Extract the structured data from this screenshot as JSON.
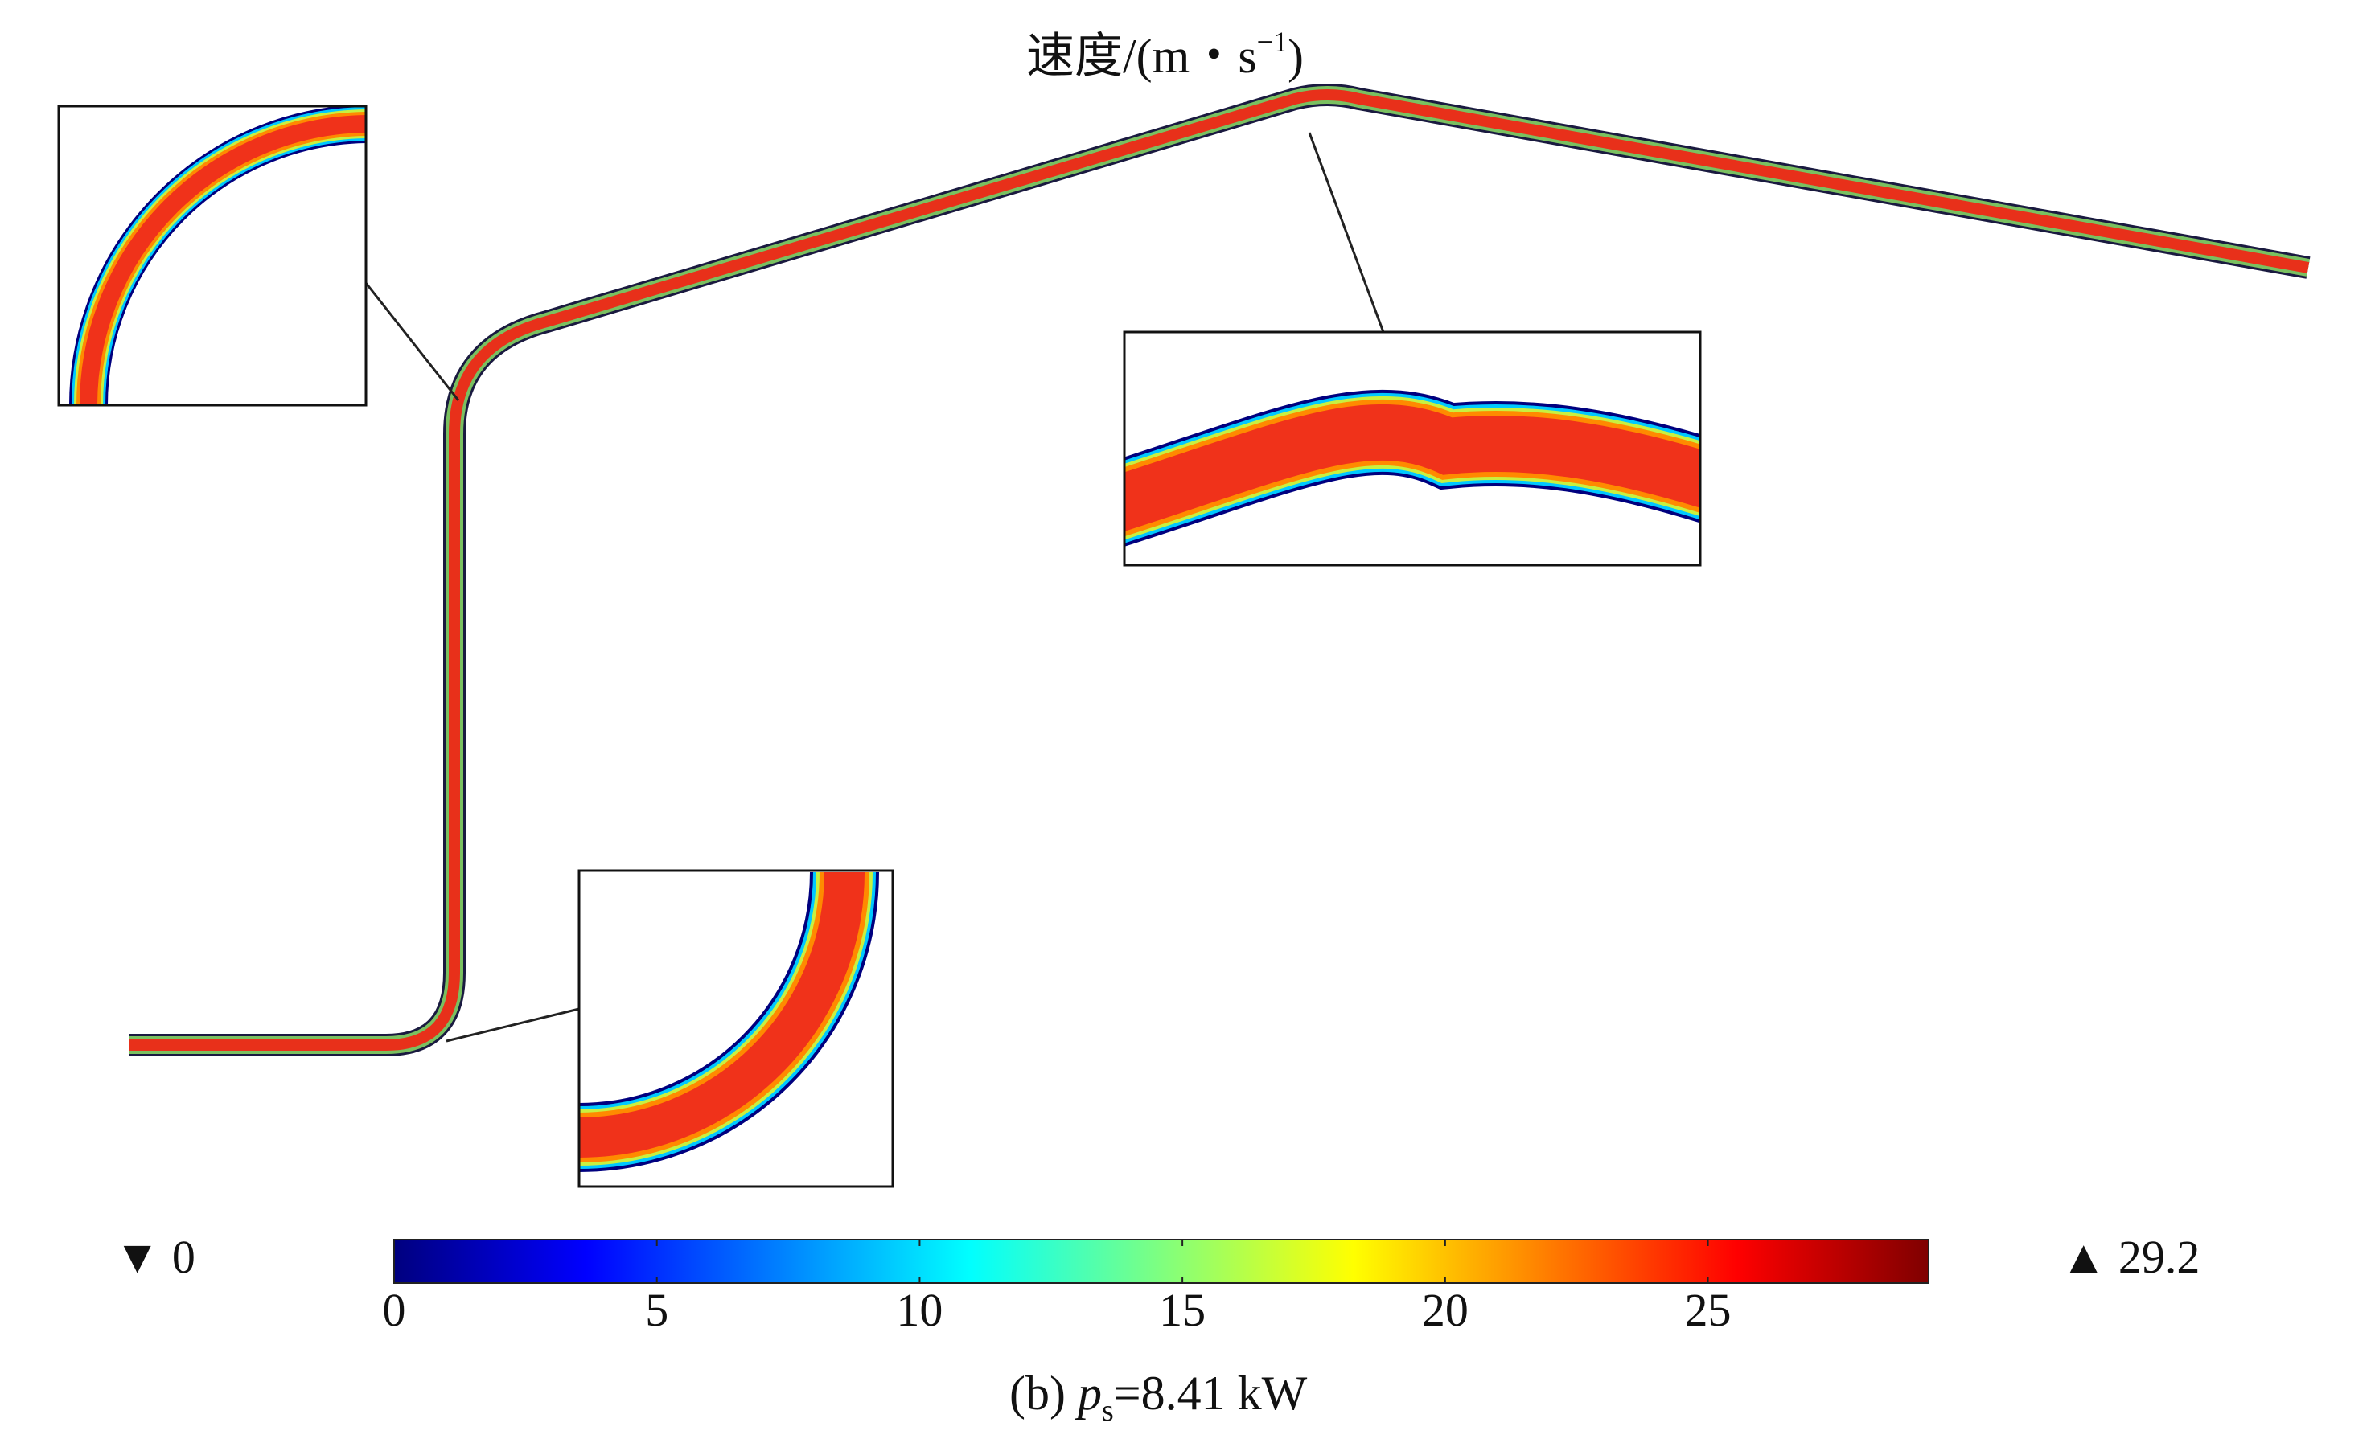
{
  "figure": {
    "title_main": "速度/(m・s",
    "title_sup": "−1",
    "title_end": ")",
    "caption_prefix": "(b) ",
    "caption_var": "p",
    "caption_sub": "s",
    "caption_value": "=8.41 kW"
  },
  "colorbar": {
    "min_label": "▼ 0",
    "max_label": "▲ 29.2",
    "min": 0,
    "max": 29.2,
    "ticks": [
      "0",
      "5",
      "10",
      "15",
      "20",
      "25"
    ],
    "colormap": "jet",
    "colors": [
      "#00007f",
      "#0000ff",
      "#007fff",
      "#00ffff",
      "#7fff7f",
      "#ffff00",
      "#ff7f00",
      "#ff0000",
      "#7f0000"
    ]
  },
  "pipe": {
    "segments": [
      "horizontal inlet",
      "lower bend",
      "vertical riser",
      "upper bend",
      "inclined rise",
      "peak bend",
      "inclined descent"
    ],
    "core_color": "#e8301a",
    "wall_color": "#1a1a40"
  },
  "insets": [
    {
      "name": "upper-bend-zoom"
    },
    {
      "name": "peak-bend-zoom"
    },
    {
      "name": "lower-bend-zoom"
    }
  ]
}
